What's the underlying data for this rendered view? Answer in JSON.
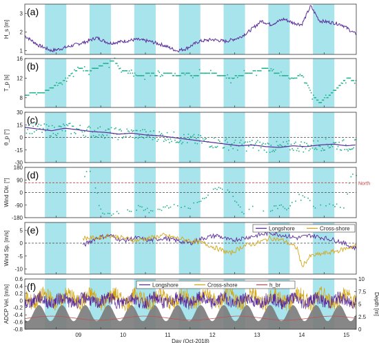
{
  "figure": {
    "xlabel": "Day (Oct-2018)",
    "xticks": [
      "09",
      "10",
      "11",
      "12",
      "13",
      "14",
      "15"
    ],
    "north_label": "North"
  },
  "colors": {
    "shade": "#a8e4ec",
    "hs": "#5a2a9a",
    "dots": "#1bb08a",
    "longshore": "#5a2a9a",
    "crossshore": "#d4a615",
    "hbr": "#c05050",
    "depth": "#7a7a7a",
    "refline": "#c04040"
  },
  "chart_data": [
    {
      "panel": "a",
      "type": "line",
      "label": "(a)",
      "ylabel": "H_s [m]",
      "ylim": [
        0.8,
        3.5
      ],
      "yticks": [
        1,
        2,
        3
      ],
      "x": [
        8.3,
        8.6,
        8.9,
        9.1,
        9.4,
        9.7,
        9.9,
        10.2,
        10.5,
        10.8,
        11.1,
        11.4,
        11.7,
        11.9,
        12.2,
        12.5,
        12.8,
        13.1,
        13.3,
        13.6,
        13.8,
        14.1,
        14.3,
        14.5,
        14.7,
        14.9,
        15.2,
        15.4,
        15.7
      ],
      "y": [
        1.8,
        1.3,
        1.0,
        1.1,
        1.3,
        1.5,
        1.7,
        1.4,
        1.5,
        1.6,
        1.5,
        1.3,
        1.0,
        1.1,
        1.5,
        1.6,
        1.5,
        1.7,
        2.0,
        2.6,
        2.4,
        2.7,
        2.5,
        2.4,
        3.4,
        2.6,
        2.5,
        2.4,
        1.9
      ]
    },
    {
      "panel": "b",
      "type": "scatter",
      "label": "(b)",
      "ylabel": "T_p [s]",
      "ylim": [
        6,
        16
      ],
      "yticks": [
        8,
        12,
        16
      ],
      "x": [
        8.3,
        8.5,
        8.7,
        8.9,
        9.1,
        9.3,
        9.5,
        9.7,
        9.9,
        10.1,
        10.3,
        10.5,
        10.7,
        10.9,
        11.1,
        11.3,
        11.5,
        11.7,
        11.9,
        12.1,
        12.3,
        12.5,
        12.7,
        12.9,
        13.1,
        13.3,
        13.5,
        13.7,
        13.9,
        14.1,
        14.3,
        14.5,
        14.7,
        14.9,
        15.1,
        15.3,
        15.5,
        15.7
      ],
      "y": [
        8.5,
        9,
        9,
        10,
        11,
        12.5,
        14,
        13.5,
        14,
        15,
        15.5,
        13.5,
        13,
        12.5,
        13,
        12.5,
        13,
        12.5,
        13,
        12.5,
        13,
        13,
        12.5,
        12,
        12.5,
        13,
        13.5,
        14,
        13,
        12.5,
        12,
        12.5,
        9,
        7,
        8.5,
        10,
        12,
        11.5
      ]
    },
    {
      "panel": "c",
      "type": "line",
      "label": "(c)",
      "ylabel": "θ_p [°]",
      "ylim": [
        -30,
        30
      ],
      "yticks": [
        -30,
        -15,
        0,
        15,
        30
      ],
      "x": [
        8.3,
        8.6,
        8.9,
        9.2,
        9.5,
        9.8,
        10.1,
        10.4,
        10.7,
        11.0,
        11.3,
        11.6,
        11.9,
        12.2,
        12.5,
        12.8,
        13.1,
        13.4,
        13.7,
        14.0,
        14.3,
        14.6,
        14.9,
        15.2,
        15.5,
        15.7
      ],
      "y": [
        12,
        10,
        8,
        11,
        9,
        7,
        6,
        4,
        5,
        3,
        2,
        0,
        -2,
        -4,
        -6,
        -8,
        -10,
        -9,
        -11,
        -12,
        -10,
        -11,
        -9,
        -8,
        -10,
        -9
      ]
    },
    {
      "panel": "d",
      "type": "scatter",
      "label": "(d)",
      "ylabel": "Wind Dir. [°]",
      "ylim": [
        -180,
        180
      ],
      "yticks": [
        -180,
        -90,
        0,
        90,
        180
      ],
      "reference_lines": [
        70,
        0
      ],
      "x": [
        9.6,
        9.8,
        10.0,
        10.2,
        10.4,
        10.6,
        10.8,
        11.0,
        11.2,
        11.4,
        11.6,
        11.8,
        12.0,
        12.2,
        12.4,
        12.6,
        12.8,
        13.0,
        13.2,
        13.4,
        13.6,
        13.8,
        14.0,
        14.2,
        14.4,
        14.6,
        14.8,
        15.0,
        15.2,
        15.4,
        15.6
      ],
      "y": [
        130,
        150,
        -150,
        -160,
        -140,
        -120,
        -110,
        -130,
        -120,
        -110,
        -100,
        -90,
        -100,
        -60,
        -20,
        40,
        10,
        -60,
        -150,
        -100,
        -140,
        -130,
        -90,
        -120,
        -30,
        -50,
        -110,
        -100,
        -80,
        -130,
        120
      ]
    },
    {
      "panel": "e",
      "type": "line",
      "label": "(e)",
      "ylabel": "Wind Sp. [m/s]",
      "ylim": [
        -12,
        8
      ],
      "yticks": [
        -10,
        -5,
        0,
        5
      ],
      "series": [
        {
          "name": "Longshore",
          "x": [
            9.6,
            9.9,
            10.2,
            10.5,
            10.8,
            11.1,
            11.4,
            11.7,
            12.0,
            12.3,
            12.6,
            12.9,
            13.2,
            13.5,
            13.8,
            14.1,
            14.4,
            14.7,
            15.0,
            15.3,
            15.7
          ],
          "y": [
            -1,
            2,
            3,
            1,
            2,
            1,
            2,
            1,
            0,
            2,
            3,
            1,
            2,
            3,
            4,
            3,
            2,
            3,
            2,
            1,
            -2
          ]
        },
        {
          "name": "Cross-shore",
          "x": [
            9.6,
            9.9,
            10.2,
            10.5,
            10.8,
            11.1,
            11.4,
            11.7,
            12.0,
            12.3,
            12.6,
            12.9,
            13.2,
            13.5,
            13.8,
            14.1,
            14.4,
            14.5,
            14.7,
            15.0,
            15.3,
            15.7
          ],
          "y": [
            2,
            2,
            3,
            2,
            1,
            2,
            3,
            2,
            1,
            0,
            -2,
            -4,
            -1,
            0,
            2,
            1,
            -2,
            -9,
            -5,
            -4,
            -3,
            -1
          ]
        }
      ]
    },
    {
      "panel": "f",
      "type": "line",
      "label": "(f)",
      "ylabel": "ADCP Vel. [m/s]",
      "y2label": "Depth [m]",
      "ylim": [
        -0.8,
        0.6
      ],
      "yticks": [
        -0.8,
        -0.6,
        -0.4,
        -0.2,
        0,
        0.2,
        0.4,
        0.6
      ],
      "y2lim": [
        0,
        10
      ],
      "y2ticks": [
        0,
        2.5,
        5,
        7.5,
        10
      ],
      "series": [
        {
          "name": "Longshore"
        },
        {
          "name": "Cross-shore"
        },
        {
          "name": "h_br"
        }
      ]
    }
  ]
}
